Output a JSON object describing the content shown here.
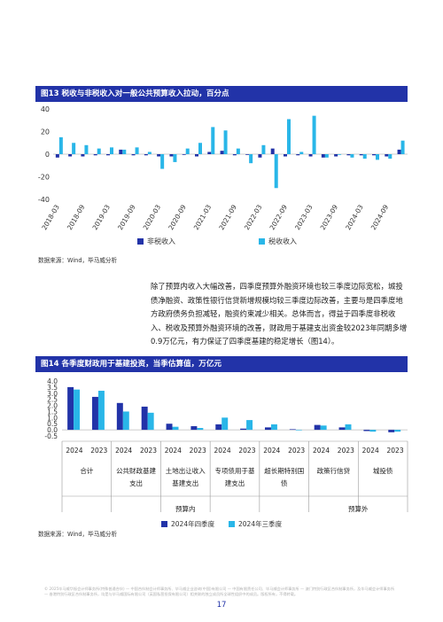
{
  "fig13": {
    "header": "图13 税收与非税收入对一般公共预算收入拉动，百分点",
    "source": "数据来源：Wind，毕马威分析",
    "chart_data": {
      "type": "bar",
      "categories": [
        "2018-03",
        "2018-06",
        "2018-09",
        "2018-12",
        "2019-03",
        "2019-06",
        "2019-09",
        "2019-12",
        "2020-03",
        "2020-06",
        "2020-09",
        "2020-12",
        "2021-03",
        "2021-06",
        "2021-09",
        "2021-12",
        "2022-03",
        "2022-06",
        "2022-09",
        "2022-12",
        "2023-03",
        "2023-06",
        "2023-09",
        "2023-12",
        "2024-03",
        "2024-06",
        "2024-09",
        "2024-12"
      ],
      "tick_labels": [
        "2018-03",
        "2018-09",
        "2019-03",
        "2019-09",
        "2020-03",
        "2020-09",
        "2021-03",
        "2021-09",
        "2022-03",
        "2022-09",
        "2023-03",
        "2023-09",
        "2024-03",
        "2024-09"
      ],
      "series": [
        {
          "name": "非税收入",
          "color": "#2233a8",
          "values": [
            -3,
            -2,
            -2,
            -1,
            -1,
            4,
            -1,
            -1,
            -2,
            -2,
            0,
            -2,
            2,
            3,
            -1,
            0,
            -3,
            5,
            -2,
            -1,
            -2,
            -3,
            -2,
            -1,
            -1,
            -1,
            -2,
            4
          ]
        },
        {
          "name": "税收收入",
          "color": "#29b6e8",
          "values": [
            15,
            10,
            8,
            5,
            6,
            4,
            6,
            2,
            -13,
            -7,
            5,
            10,
            24,
            21,
            5,
            -8,
            8,
            -30,
            31,
            2,
            34,
            -3,
            0,
            -3,
            -4,
            -5,
            -4,
            12
          ]
        }
      ],
      "ylim": [
        -40,
        40
      ],
      "yticks": [
        40,
        20,
        0,
        -20,
        -40
      ],
      "legend_position": "bottom",
      "grid": false
    }
  },
  "paragraph": "除了预算内收入大幅改善，四季度预算外融资环境也较三季度边际宽松，城投债净融资、政策性银行信贷新增规模均较三季度边际改善，主要与是四季度地方政府债务负担减轻，融资约束减少相关。总体而言，得益于四季度非税收入、税收及预算外融资环境的改善，财政用于基建支出资金较2023年同期多增0.9万亿元，有力保证了四季度基建的稳定增长（图14）。",
  "fig14": {
    "header": "图14 各季度财政用于基建投资，当季估算值，万亿元",
    "source": "数据来源：Wind，毕马威分析",
    "chart_data": {
      "type": "bar",
      "group_labels": [
        {
          "label_lines": [
            "合计"
          ]
        },
        {
          "label_lines": [
            "公共财政基建",
            "支出"
          ]
        },
        {
          "label_lines": [
            "土地出让收入",
            "基建支出"
          ]
        },
        {
          "label_lines": [
            "专项债用于基",
            "建支出"
          ]
        },
        {
          "label_lines": [
            "超长期特别国",
            "债"
          ]
        },
        {
          "label_lines": [
            "政策行信贷"
          ]
        },
        {
          "label_lines": [
            "城投债"
          ]
        }
      ],
      "subcategories": [
        "2024",
        "2023"
      ],
      "super_groups": [
        {
          "label": "预算内",
          "groups": [
            0,
            4
          ]
        },
        {
          "label": "预算外",
          "groups": [
            5,
            6
          ]
        }
      ],
      "series": [
        {
          "name": "2024年四季度",
          "color": "#2233a8",
          "values": [
            [
              3.5,
              3.4
            ],
            [
              2.7,
              2.6
            ],
            [
              2.2,
              2.1
            ],
            [
              1.9,
              1.8
            ],
            [
              0.5,
              0.5
            ],
            [
              0.3,
              0.3
            ],
            [
              0.45,
              0.3
            ],
            [
              0.1,
              0.3
            ],
            [
              0.2,
              0.0
            ],
            [
              0.05,
              0.0
            ],
            [
              0.4,
              0.3
            ],
            [
              0.2,
              0.3
            ],
            [
              -0.1,
              -0.15
            ],
            [
              -0.2,
              0.25
            ]
          ]
        },
        {
          "name": "2024年三季度",
          "color": "#29b6e8",
          "values": [
            [
              3.3,
              3.3
            ],
            [
              3.2,
              3.2
            ],
            [
              1.5,
              1.5
            ],
            [
              1.4,
              1.4
            ],
            [
              0.25,
              0.2
            ],
            [
              0.15,
              0.15
            ],
            [
              1.0,
              0.85
            ],
            [
              0.8,
              0.8
            ],
            [
              0.45,
              0.0
            ],
            [
              0.0,
              0.0
            ],
            [
              0.35,
              0.35
            ],
            [
              0.45,
              0.5
            ],
            [
              -0.15,
              -0.1
            ],
            [
              -0.15,
              0.3
            ]
          ]
        }
      ],
      "ylim": [
        -0.5,
        4.0
      ],
      "yticks": [
        4.0,
        3.5,
        3.0,
        2.5,
        2.0,
        1.5,
        1.0,
        0.5,
        0.0,
        -0.5
      ],
      "legend_position": "bottom",
      "grid": false
    }
  },
  "footer": "© 2025毕马威华振会计师事务所(特殊普通合伙) — 中国合伙制会计师事务所、毕马威企业咨询(中国)有限公司 — 中国有限责任公司、毕马威会计师事务所 — 澳门特别行政区合伙制事务所，及毕马威会计师事务所 — 香港特别行政区合伙制事务所，均是与毕马威国际有限公司（英国私营担保有限公司）相关联的独立成员所全球性组织中的成员。版权所有，不得转载。",
  "page_number": "17"
}
